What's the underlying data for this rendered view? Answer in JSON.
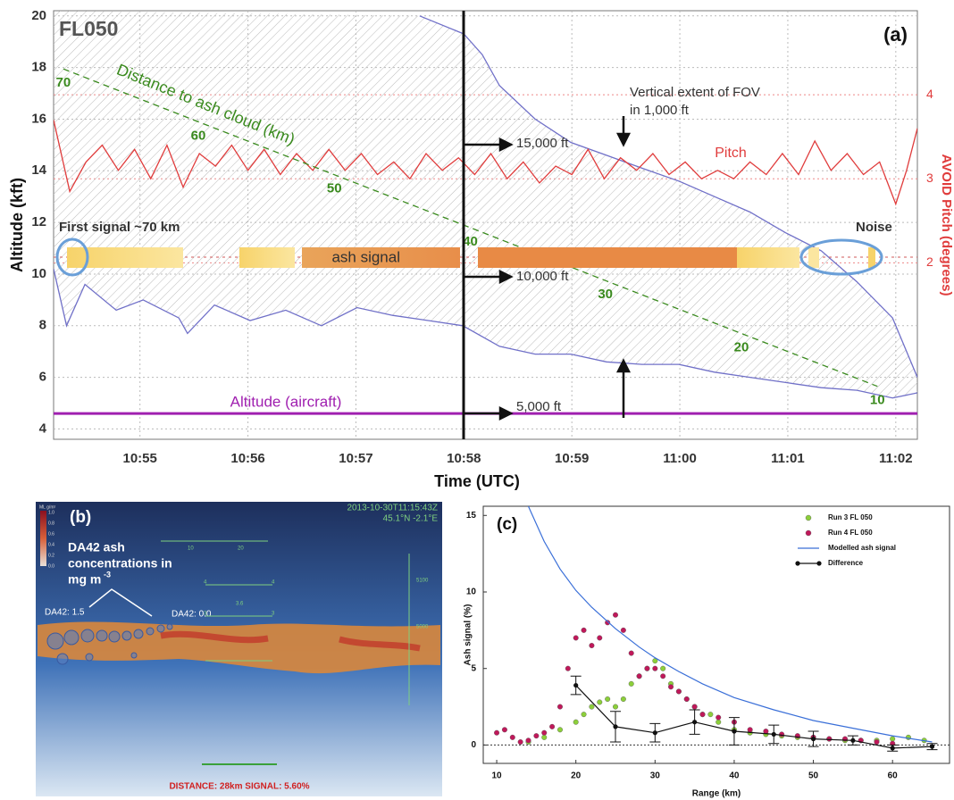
{
  "chart_data": [
    {
      "type": "line",
      "title": "FL050",
      "panel_label": "(a)",
      "xlabel": "Time (UTC)",
      "ylabel": "Altitude (kft)",
      "y2label": "AVOID Pitch (degrees)",
      "xlim": [
        54.2,
        62.2
      ],
      "xticks": [
        {
          "value": 55,
          "label": "10:55"
        },
        {
          "value": 56,
          "label": "10:56"
        },
        {
          "value": 57,
          "label": "10:57"
        },
        {
          "value": 58,
          "label": "10:58"
        },
        {
          "value": 59,
          "label": "10:59"
        },
        {
          "value": 60,
          "label": "11:00"
        },
        {
          "value": 61,
          "label": "11:01"
        },
        {
          "value": 62,
          "label": "11:02"
        }
      ],
      "ylim": [
        3.6,
        20.2
      ],
      "yticks": [
        4,
        6,
        8,
        10,
        12,
        14,
        16,
        18,
        20
      ],
      "y2lim": [
        -0.1,
        5.0
      ],
      "y2ticks": [
        2,
        3,
        4
      ],
      "y3lim": [
        0,
        81
      ],
      "grid": true,
      "hatch": true,
      "series": [
        {
          "color": "#7070c8",
          "x": [
            57.59,
            58.0,
            58.17,
            58.33,
            58.66,
            58.99,
            59.32,
            59.65,
            59.99,
            60.32,
            60.65,
            60.98,
            61.31,
            61.64,
            61.97,
            62.2
          ],
          "values": [
            20.0,
            19.3,
            18.5,
            17.3,
            16.0,
            15.1,
            14.6,
            14.1,
            13.6,
            13.0,
            12.4,
            11.6,
            10.9,
            9.7,
            8.3,
            6.0
          ]
        },
        {
          "color": "#7070c8",
          "x": [
            54.2,
            54.32,
            54.49,
            54.78,
            55.03,
            55.36,
            55.44,
            55.69,
            56.02,
            56.35,
            56.68,
            57.01,
            57.34,
            57.67,
            57.99,
            58.33,
            58.66,
            58.99,
            59.32,
            59.65,
            59.99,
            60.32,
            60.65,
            60.98,
            61.31,
            61.64,
            61.97,
            62.2
          ],
          "values": [
            10.2,
            8.0,
            9.6,
            8.6,
            9.0,
            8.3,
            7.7,
            8.8,
            8.2,
            8.6,
            8.0,
            8.7,
            8.4,
            8.2,
            8.0,
            7.2,
            6.9,
            6.9,
            6.6,
            6.5,
            6.5,
            6.2,
            6.0,
            5.8,
            5.6,
            5.5,
            5.2,
            5.4
          ]
        },
        {
          "name": "Pitch",
          "color": "#e03c3c",
          "axis": "y2",
          "x": [
            54.2,
            54.35,
            54.5,
            54.65,
            54.8,
            54.95,
            55.1,
            55.25,
            55.4,
            55.55,
            55.7,
            55.85,
            56.0,
            56.15,
            56.3,
            56.45,
            56.6,
            56.75,
            56.9,
            57.05,
            57.2,
            57.35,
            57.5,
            57.65,
            57.8,
            57.95,
            58.1,
            58.25,
            58.4,
            58.55,
            58.7,
            58.85,
            59.0,
            59.15,
            59.3,
            59.45,
            59.6,
            59.75,
            59.9,
            60.05,
            60.2,
            60.35,
            60.5,
            60.65,
            60.8,
            60.95,
            61.1,
            61.25,
            61.4,
            61.55,
            61.7,
            61.85,
            62.0,
            62.1,
            62.2
          ],
          "values": [
            3.7,
            2.85,
            3.2,
            3.4,
            3.1,
            3.35,
            3.0,
            3.4,
            2.9,
            3.3,
            3.15,
            3.4,
            3.1,
            3.35,
            3.05,
            3.3,
            3.1,
            3.35,
            3.1,
            3.3,
            3.05,
            3.2,
            3.0,
            3.3,
            3.1,
            3.25,
            3.05,
            3.3,
            3.0,
            3.2,
            2.95,
            3.15,
            3.05,
            3.35,
            3.0,
            3.25,
            3.1,
            3.3,
            3.05,
            3.2,
            3.0,
            3.1,
            3.0,
            3.2,
            3.05,
            3.3,
            3.05,
            3.45,
            3.1,
            3.3,
            3.05,
            3.2,
            2.7,
            3.1,
            3.6
          ]
        },
        {
          "name": "Distance to ash cloud (km)",
          "color": "#3a8a1e",
          "axis": "y3",
          "dash": true,
          "point_labels": true,
          "x": [
            54.29,
            55.54,
            56.8,
            58.06,
            59.31,
            60.57,
            61.83
          ],
          "values": [
            70,
            60,
            50,
            40,
            30,
            20,
            10
          ]
        },
        {
          "name": "Altitude (aircraft)",
          "color": "#a020b0",
          "width": 3,
          "x": [
            54.2,
            62.2
          ],
          "values": [
            4.6,
            4.6
          ]
        }
      ],
      "annotations": {
        "first_signal": "First signal ~70 km",
        "noise": "Noise",
        "ash_signal": "ash signal",
        "fov_1": "Vertical extent of FOV",
        "fov_2": "in 1,000 ft",
        "ft15": "15,000 ft",
        "ft10": "10,000 ft",
        "ft5": "5,000 ft"
      }
    },
    {
      "type": "scatter",
      "panel_label": "(c)",
      "xlabel": "Range (km)",
      "ylabel": "Ash signal (%)",
      "xlim": [
        8.3,
        67.2
      ],
      "xticks": [
        10,
        20,
        30,
        40,
        50,
        60
      ],
      "ylim": [
        -1.2,
        15.6
      ],
      "yticks": [
        0,
        5,
        10,
        15
      ],
      "zero_line": true,
      "legend": "upper right",
      "series": [
        {
          "name": "Run 3 FL 050",
          "color": "#8ccf3a",
          "style": "points",
          "x": [
            14,
            16,
            18,
            20,
            21,
            22,
            23,
            24,
            25,
            26,
            27,
            28,
            29,
            30,
            31,
            32,
            33,
            34,
            35,
            36,
            37,
            38,
            40,
            42,
            44,
            46,
            48,
            50,
            52,
            54,
            56,
            58,
            60,
            62,
            64
          ],
          "values": [
            0.2,
            0.5,
            1.0,
            1.5,
            2.0,
            2.5,
            2.8,
            3.0,
            2.5,
            3.0,
            4.0,
            4.5,
            5.0,
            5.5,
            5.0,
            4.0,
            3.5,
            3.0,
            2.5,
            2.0,
            2.0,
            1.5,
            1.0,
            0.8,
            0.7,
            0.6,
            0.5,
            0.5,
            0.4,
            0.3,
            0.3,
            0.3,
            0.4,
            0.5,
            0.3
          ]
        },
        {
          "name": "Run 4 FL 050",
          "color": "#c0185a",
          "style": "points",
          "x": [
            10,
            11,
            12,
            13,
            14,
            15,
            16,
            17,
            18,
            19,
            20,
            21,
            22,
            23,
            24,
            25,
            26,
            27,
            28,
            29,
            30,
            31,
            32,
            33,
            34,
            35,
            36,
            38,
            40,
            42,
            44,
            46,
            48,
            50,
            52,
            54,
            56,
            58,
            60
          ],
          "values": [
            0.8,
            1.0,
            0.5,
            0.2,
            0.3,
            0.6,
            0.8,
            1.2,
            2.5,
            5.0,
            7.0,
            7.5,
            6.5,
            7.0,
            8.0,
            8.5,
            7.5,
            6.0,
            4.5,
            5.0,
            5.0,
            4.5,
            3.8,
            3.5,
            3.0,
            2.5,
            2.0,
            1.8,
            1.5,
            1.0,
            0.9,
            0.7,
            0.6,
            0.5,
            0.4,
            0.4,
            0.3,
            0.2,
            0.1
          ]
        },
        {
          "name": "Modelled ash signal",
          "color": "#3a6fd8",
          "style": "line",
          "x": [
            14,
            16,
            18,
            20,
            22,
            25,
            28,
            30,
            33,
            36,
            40,
            45,
            50,
            55,
            60,
            65
          ],
          "values": [
            15.6,
            13.3,
            11.5,
            10.1,
            9.0,
            7.6,
            6.4,
            5.7,
            4.8,
            4.0,
            3.1,
            2.3,
            1.6,
            1.1,
            0.6,
            0.2
          ]
        },
        {
          "name": "Difference",
          "color": "#111111",
          "style": "line-markers",
          "x": [
            20,
            25,
            30,
            35,
            40,
            45,
            50,
            55,
            60,
            65
          ],
          "values": [
            3.9,
            1.2,
            0.8,
            1.5,
            0.9,
            0.7,
            0.4,
            0.3,
            -0.2,
            -0.1
          ],
          "errors": [
            0.6,
            1.0,
            0.6,
            0.8,
            0.9,
            0.6,
            0.5,
            0.3,
            0.2,
            0.2
          ]
        }
      ]
    }
  ],
  "panel_b": {
    "label": "(b)",
    "timestamp": "2013-10-30T11:15:43Z",
    "position": "45.1°N -2.1°E",
    "colorbar_unit": "ML g/m²",
    "colorbar_ticks": [
      "1.0",
      "0.8",
      "0.6",
      "0.4",
      "0.2",
      "0.0"
    ],
    "callout": [
      "DA42 ash",
      "concentrations in",
      "mg m"
    ],
    "callout_sup": "-3",
    "marker_left": "DA42: 1.5",
    "marker_right": "DA42: 0.0",
    "hud_top": [
      "10",
      "20"
    ],
    "hud_right": [
      "5100",
      "5000"
    ],
    "ladder": [
      "4",
      "4",
      "3.6",
      "3",
      "3"
    ],
    "status": "DISTANCE: 28km  SIGNAL: 5.60%"
  }
}
